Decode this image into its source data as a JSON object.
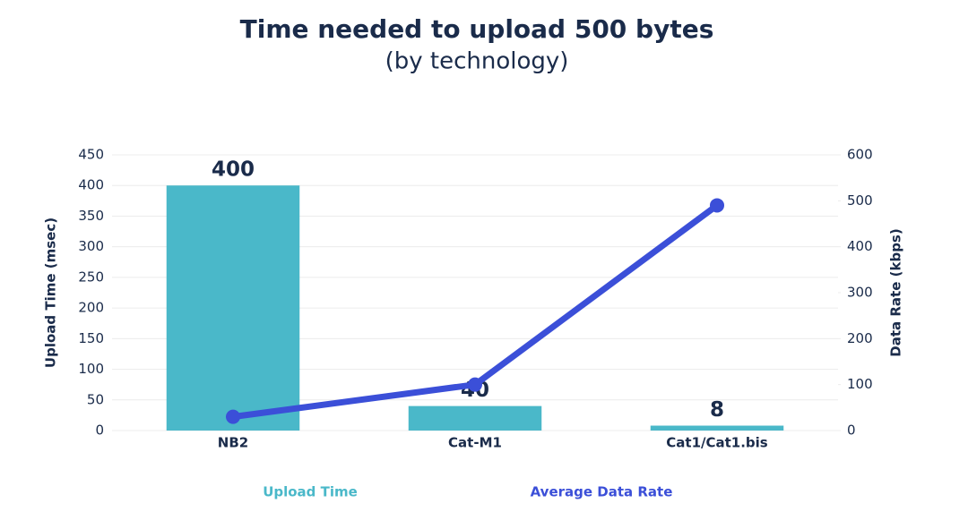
{
  "chart_data": {
    "type": "bar",
    "title": "Time needed to upload 500 bytes",
    "subtitle": "(by technology)",
    "categories": [
      "NB2",
      "Cat-M1",
      "Cat1/Cat1.bis"
    ],
    "series": [
      {
        "name": "Upload Time",
        "type": "bar",
        "color": "#4ab8c9",
        "values": [
          400,
          40,
          8
        ]
      },
      {
        "name": "Average Data Rate",
        "type": "line",
        "color": "#3b4fd8",
        "axis": "y2",
        "values": [
          30,
          100,
          490
        ]
      }
    ],
    "ylabel": "Upload Time (msec)",
    "y2label": "Data Rate (kbps)",
    "ylim": [
      0,
      450
    ],
    "yticks": [
      0,
      50,
      100,
      150,
      200,
      250,
      300,
      350,
      400,
      450
    ],
    "y2lim": [
      0,
      600
    ],
    "y2ticks": [
      0,
      100,
      200,
      300,
      400,
      500,
      600
    ],
    "grid": true
  }
}
